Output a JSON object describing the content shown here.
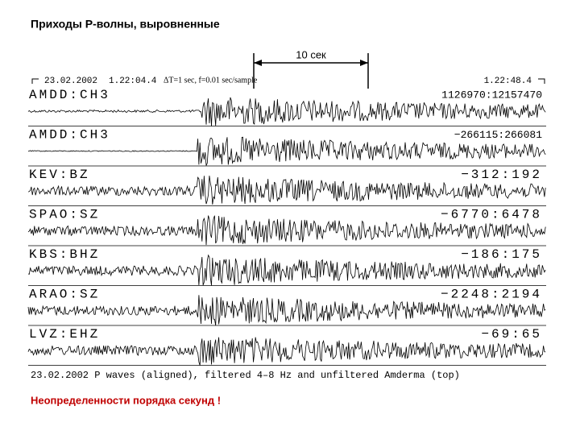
{
  "title": "Приходы Р-волны, выровненные",
  "scale_label": "10 сек",
  "header": {
    "date": "23.02.2002",
    "start": "1.22:04.4",
    "params": "ΔT=1 sec, f=0.01 sec/sample",
    "end": "1.22:48.4"
  },
  "traces": [
    {
      "station": "AMDD:CH3",
      "range": "1126970:12157470"
    },
    {
      "station": "AMDD:CH3",
      "range": "−266115:266081"
    },
    {
      "station": "KEV:BZ",
      "range": "−312:192"
    },
    {
      "station": "SPAO:SZ",
      "range": "−6770:6478"
    },
    {
      "station": "KBS:BHZ",
      "range": "−186:175"
    },
    {
      "station": "ARAO:SZ",
      "range": "−2248:2194"
    },
    {
      "station": "LVZ:EHZ",
      "range": "−69:65"
    }
  ],
  "caption": "23.02.2002 P waves (aligned), filtered 4–8 Hz and unfiltered Amderma (top)",
  "note": "Неопределенности порядка секунд !"
}
